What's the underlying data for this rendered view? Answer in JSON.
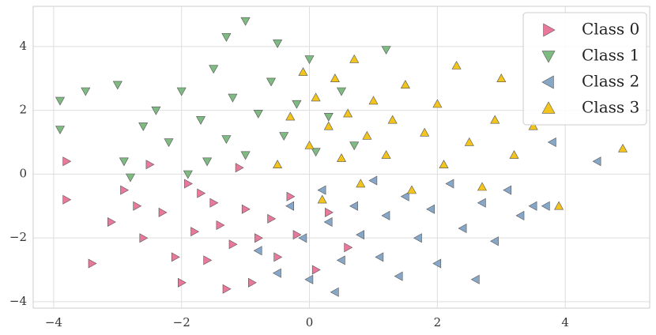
{
  "chart_data": {
    "type": "scatter",
    "xlim": [
      -4.32,
      5.32
    ],
    "ylim": [
      -4.2,
      5.26
    ],
    "xticks": [
      {
        "value": -4,
        "label": "−4"
      },
      {
        "value": -2,
        "label": "−2"
      },
      0,
      2,
      4
    ],
    "yticks": [
      {
        "value": -4,
        "label": "−4"
      },
      {
        "value": -2,
        "label": "−2"
      },
      0,
      2,
      4
    ],
    "grid": true,
    "legend": "upper right",
    "series": [
      {
        "name": "Class 0",
        "color": "#e8799b",
        "marker": "triangle-right",
        "x": [
          -3.8,
          -3.8,
          -3.4,
          -3.1,
          -2.9,
          -2.6,
          -2.5,
          -2.3,
          -2.1,
          -2.0,
          -1.9,
          -1.8,
          -1.6,
          -1.5,
          -1.4,
          -1.3,
          -1.2,
          -1.1,
          -1.0,
          -0.9,
          -0.8,
          -0.6,
          -0.5,
          -0.3,
          -0.2,
          0.1,
          0.3,
          0.6,
          -2.7,
          -1.7
        ],
        "values": [
          0.4,
          -0.8,
          -2.8,
          -1.5,
          -0.5,
          -2.0,
          0.3,
          -1.2,
          -2.6,
          -3.4,
          -0.3,
          -1.8,
          -2.7,
          -0.9,
          -1.6,
          -3.6,
          -2.2,
          0.2,
          -1.1,
          -3.4,
          -2.0,
          -1.4,
          -2.6,
          -0.7,
          -1.9,
          -3.0,
          -1.2,
          -2.3,
          -1.0,
          -0.6
        ]
      },
      {
        "name": "Class 1",
        "color": "#7fba82",
        "marker": "triangle-down",
        "x": [
          -3.9,
          -3.9,
          -3.5,
          -3.0,
          -2.9,
          -2.6,
          -2.4,
          -2.2,
          -2.0,
          -1.9,
          -1.7,
          -1.5,
          -1.3,
          -1.3,
          -1.2,
          -1.0,
          -1.0,
          -0.8,
          -0.6,
          -0.5,
          -0.4,
          -0.2,
          0.0,
          0.1,
          0.3,
          0.5,
          0.7,
          1.2,
          -2.8,
          -1.6
        ],
        "values": [
          1.4,
          2.3,
          2.6,
          2.8,
          0.4,
          1.5,
          2.0,
          1.0,
          2.6,
          0.0,
          1.7,
          3.3,
          1.1,
          4.3,
          2.4,
          4.8,
          0.6,
          1.9,
          2.9,
          4.1,
          1.2,
          2.2,
          3.6,
          0.7,
          1.8,
          2.6,
          0.9,
          3.9,
          -0.1,
          0.4
        ]
      },
      {
        "name": "Class 2",
        "color": "#87a7c9",
        "marker": "triangle-left",
        "x": [
          -0.8,
          -0.5,
          -0.3,
          -0.1,
          0.0,
          0.2,
          0.3,
          0.5,
          0.7,
          0.8,
          1.0,
          1.1,
          1.2,
          1.4,
          1.5,
          1.7,
          1.9,
          2.0,
          2.2,
          2.4,
          2.6,
          2.7,
          2.9,
          3.1,
          3.3,
          3.5,
          3.7,
          3.8,
          4.5,
          0.4
        ],
        "values": [
          -2.4,
          -3.1,
          -1.0,
          -2.0,
          -3.3,
          -0.5,
          -1.5,
          -2.7,
          -1.0,
          -1.9,
          -0.2,
          -2.6,
          -1.3,
          -3.2,
          -0.7,
          -2.0,
          -1.1,
          -2.8,
          -0.3,
          -1.7,
          -3.3,
          -0.9,
          -2.1,
          -0.5,
          -1.3,
          -1.0,
          -1.0,
          1.0,
          0.4,
          -3.7
        ]
      },
      {
        "name": "Class 3",
        "color": "#f2c41c",
        "marker": "triangle-up",
        "x": [
          -0.5,
          -0.3,
          -0.1,
          0.0,
          0.1,
          0.2,
          0.3,
          0.4,
          0.5,
          0.6,
          0.7,
          0.8,
          0.9,
          1.0,
          1.2,
          1.3,
          1.5,
          1.6,
          1.8,
          2.0,
          2.1,
          2.3,
          2.5,
          2.7,
          2.9,
          3.0,
          3.2,
          3.5,
          3.9,
          4.9
        ],
        "values": [
          0.3,
          1.8,
          3.2,
          0.9,
          2.4,
          -0.8,
          1.5,
          3.0,
          0.5,
          1.9,
          3.6,
          -0.3,
          1.2,
          2.3,
          0.6,
          1.7,
          2.8,
          -0.5,
          1.3,
          2.2,
          0.3,
          3.4,
          1.0,
          -0.4,
          1.7,
          3.0,
          0.6,
          1.5,
          -1.0,
          0.8
        ]
      }
    ]
  }
}
